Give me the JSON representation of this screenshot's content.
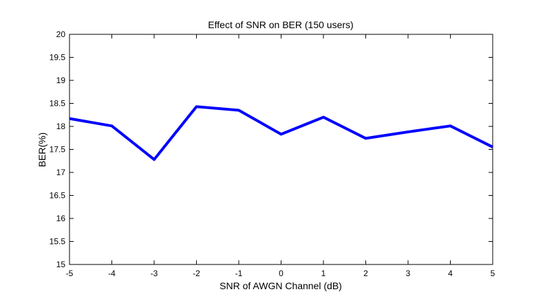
{
  "chart_data": {
    "type": "line",
    "title": "Effect of SNR on BER (150 users)",
    "xlabel": "SNR of AWGN Channel (dB)",
    "ylabel": "BER(%)",
    "xlim": [
      -5,
      5
    ],
    "ylim": [
      15,
      20
    ],
    "x_ticks": [
      -5,
      -4,
      -3,
      -2,
      -1,
      0,
      1,
      2,
      3,
      4,
      5
    ],
    "y_ticks": [
      15,
      15.5,
      16,
      16.5,
      17,
      17.5,
      18,
      18.5,
      19,
      19.5,
      20
    ],
    "grid": false,
    "series": [
      {
        "color": "#0000ff",
        "x": [
          -5,
          -4,
          -3,
          -2,
          -1,
          0,
          1,
          2,
          3,
          4,
          5
        ],
        "y": [
          18.17,
          18.01,
          17.28,
          18.43,
          18.35,
          17.83,
          18.2,
          17.74,
          17.88,
          18.01,
          17.55
        ]
      }
    ]
  }
}
